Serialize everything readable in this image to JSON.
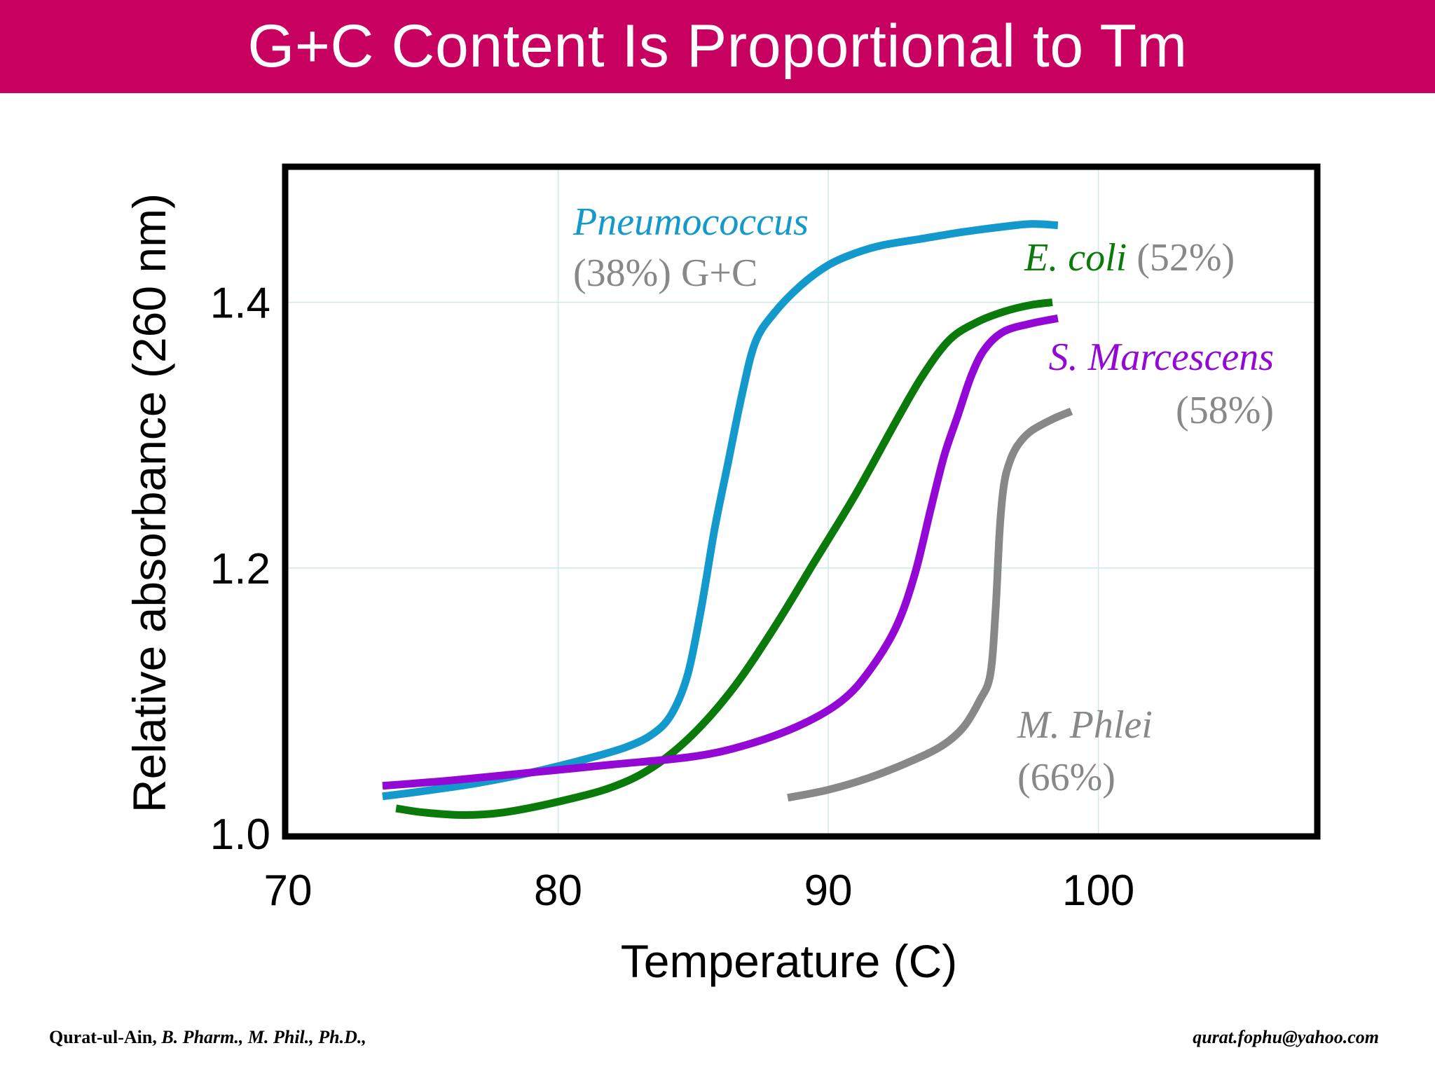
{
  "slide": {
    "title": "G+C Content Is Proportional to Tm",
    "banner_color": "#c8005f"
  },
  "footer": {
    "author": "Qurat-ul-Ain,",
    "qualifications": " B. Pharm., M. Phil., Ph.D.,",
    "email": "qurat.fophu@yahoo.com"
  },
  "chart_data": {
    "type": "line",
    "title": "",
    "xlabel": "Temperature (C)",
    "ylabel": "Relative absorbance (260 nm)",
    "xlim": [
      70,
      108
    ],
    "ylim": [
      1.0,
      1.5
    ],
    "xticks": [
      70,
      80,
      90,
      100
    ],
    "xtick_labels": [
      "70",
      "80",
      "90",
      "100"
    ],
    "yticks": [
      1.0,
      1.2,
      1.4
    ],
    "ytick_labels": [
      "1.0",
      "1.2",
      "1.4"
    ],
    "grid": true,
    "legend": "inline labels",
    "series": [
      {
        "id": "pneumococcus",
        "color": "#1499cc",
        "label_name": "Pneumococcus",
        "label_pct": "(38%) G+C",
        "x": [
          73.5,
          75,
          77,
          79,
          81,
          82.5,
          83.5,
          84.2,
          84.8,
          85.3,
          85.8,
          86.3,
          86.8,
          87.3,
          88,
          89,
          90,
          91,
          92,
          93.5,
          95,
          96.5,
          97.5,
          98.5
        ],
        "y": [
          1.028,
          1.032,
          1.038,
          1.046,
          1.056,
          1.065,
          1.075,
          1.09,
          1.12,
          1.17,
          1.23,
          1.28,
          1.33,
          1.37,
          1.392,
          1.413,
          1.428,
          1.437,
          1.443,
          1.448,
          1.453,
          1.457,
          1.459,
          1.458
        ]
      },
      {
        "id": "ecoli",
        "color": "#0a7a0a",
        "label_name": "E. coli",
        "label_pct": "(52%)",
        "x": [
          74,
          75,
          76.5,
          78,
          80,
          82,
          83.5,
          85,
          86.5,
          88,
          89.5,
          91,
          92.5,
          93.5,
          94.5,
          95.5,
          96.5,
          97.5,
          98.3
        ],
        "y": [
          1.019,
          1.016,
          1.014,
          1.016,
          1.024,
          1.035,
          1.05,
          1.075,
          1.11,
          1.155,
          1.205,
          1.255,
          1.31,
          1.345,
          1.372,
          1.385,
          1.393,
          1.398,
          1.4
        ]
      },
      {
        "id": "smarcescens",
        "color": "#9308d4",
        "label_name": "S. Marcescens",
        "label_pct": "(58%)",
        "x": [
          73.5,
          76,
          79,
          82,
          85,
          87,
          89,
          90.5,
          91.5,
          92.5,
          93.2,
          93.8,
          94.3,
          94.8,
          95.3,
          95.8,
          96.5,
          97.5,
          98.5
        ],
        "y": [
          1.036,
          1.04,
          1.046,
          1.052,
          1.058,
          1.067,
          1.082,
          1.1,
          1.122,
          1.155,
          1.195,
          1.245,
          1.285,
          1.315,
          1.345,
          1.365,
          1.378,
          1.384,
          1.388
        ]
      },
      {
        "id": "mphlei",
        "color": "#888888",
        "label_name": "M. Phlei",
        "label_pct": "(66%)",
        "x": [
          88.5,
          90,
          91.5,
          93,
          94.2,
          95,
          95.6,
          96,
          96.2,
          96.35,
          96.5,
          96.7,
          97,
          97.5,
          98.3,
          99
        ],
        "y": [
          1.027,
          1.033,
          1.042,
          1.054,
          1.066,
          1.08,
          1.1,
          1.12,
          1.17,
          1.23,
          1.262,
          1.279,
          1.292,
          1.303,
          1.312,
          1.318
        ]
      }
    ]
  }
}
